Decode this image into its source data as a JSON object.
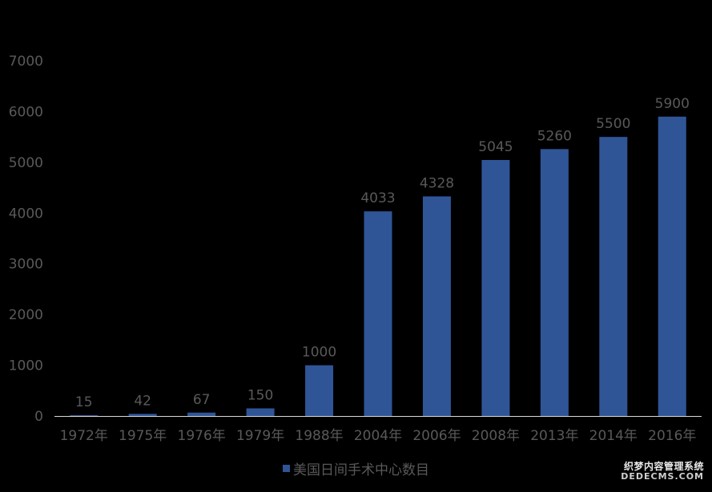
{
  "chart_data": {
    "type": "bar",
    "categories": [
      "1972年",
      "1975年",
      "1976年",
      "1979年",
      "1988年",
      "2004年",
      "2006年",
      "2008年",
      "2013年",
      "2014年",
      "2016年"
    ],
    "series": [
      {
        "name": "美国日间手术中心数目",
        "values": [
          15,
          42,
          67,
          150,
          1000,
          4033,
          4328,
          5045,
          5260,
          5500,
          5900
        ]
      }
    ],
    "data_labels": [
      "15",
      "42",
      "67",
      "150",
      "1000",
      "4033",
      "4328",
      "5045",
      "5260",
      "5500",
      "5900"
    ],
    "yticks": [
      "0",
      "1000",
      "2000",
      "3000",
      "4000",
      "5000",
      "6000",
      "7000"
    ],
    "ylim": [
      0,
      7000
    ],
    "title": "",
    "xlabel": "",
    "ylabel": "",
    "grid": false,
    "legend_position": "bottom-center",
    "colors": {
      "bar": "#2F5597",
      "text": "#595959",
      "axis": "#d9d9d9",
      "background": "#000000"
    }
  },
  "watermark": {
    "line1": "织梦内容管理系统",
    "line2": "DEDECMS.COM"
  }
}
